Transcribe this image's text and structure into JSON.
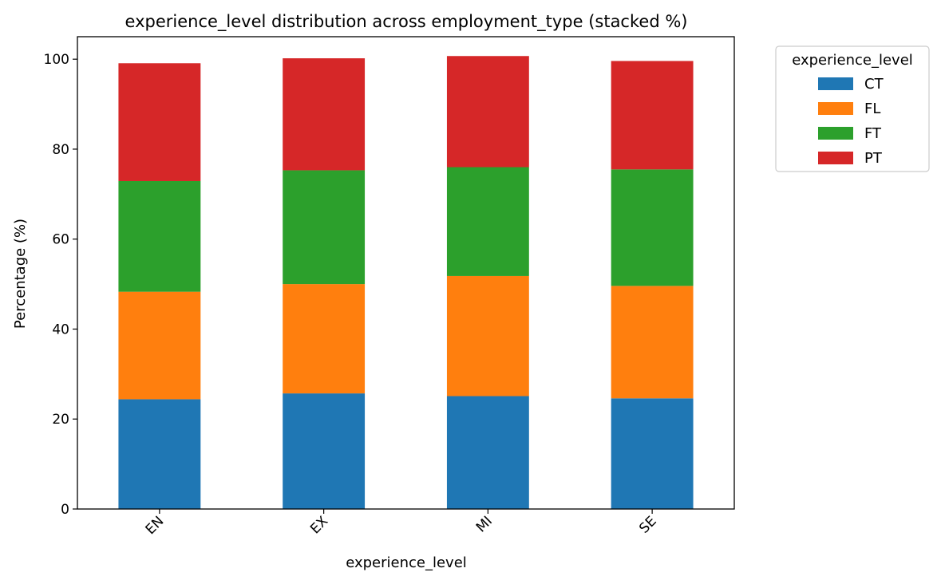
{
  "chart_data": {
    "type": "bar",
    "stacked": true,
    "title": "experience_level distribution across employment_type (stacked %)",
    "xlabel": "experience_level",
    "ylabel": "Percentage (%)",
    "ylim": [
      0,
      105
    ],
    "yticks": [
      0,
      20,
      40,
      60,
      80,
      100
    ],
    "grid": false,
    "legend": {
      "title": "experience_level",
      "placement": "outside-top-right"
    },
    "categories": [
      "EN",
      "EX",
      "MI",
      "SE"
    ],
    "series": [
      {
        "name": "CT",
        "color": "#1f77b4",
        "values": [
          24.4,
          25.7,
          25.1,
          24.6
        ]
      },
      {
        "name": "FL",
        "color": "#ff7f0e",
        "values": [
          23.9,
          24.3,
          26.7,
          25.0
        ]
      },
      {
        "name": "FT",
        "color": "#2ca02c",
        "values": [
          24.6,
          25.3,
          24.2,
          25.9
        ]
      },
      {
        "name": "PT",
        "color": "#d62728",
        "values": [
          26.2,
          24.9,
          24.7,
          24.1
        ]
      }
    ]
  }
}
